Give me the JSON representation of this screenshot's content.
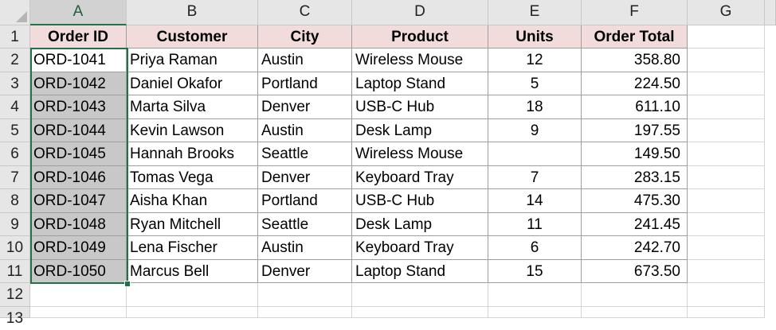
{
  "sheet": {
    "columns": [
      "A",
      "B",
      "C",
      "D",
      "E",
      "F",
      "G"
    ],
    "rows": [
      "1",
      "2",
      "3",
      "4",
      "5",
      "6",
      "7",
      "8",
      "9",
      "10",
      "11",
      "12",
      "13"
    ],
    "selected_column": "A",
    "active_cell": "A2"
  },
  "table": {
    "headers": [
      "Order ID",
      "Customer",
      "City",
      "Product",
      "Units",
      "Order Total"
    ],
    "rows": [
      [
        "ORD-1041",
        "Priya Raman",
        "Austin",
        "Wireless Mouse",
        "12",
        "358.80"
      ],
      [
        "ORD-1042",
        "Daniel Okafor",
        "Portland",
        "Laptop Stand",
        "5",
        "224.50"
      ],
      [
        "ORD-1043",
        "Marta Silva",
        "Denver",
        "USB-C Hub",
        "18",
        "611.10"
      ],
      [
        "ORD-1044",
        "Kevin Lawson",
        "Austin",
        "Desk Lamp",
        "9",
        "197.55"
      ],
      [
        "ORD-1045",
        "Hannah Brooks",
        "Seattle",
        "Wireless Mouse",
        "",
        "149.50"
      ],
      [
        "ORD-1046",
        "Tomas Vega",
        "Denver",
        "Keyboard Tray",
        "7",
        "283.15"
      ],
      [
        "ORD-1047",
        "Aisha Khan",
        "Portland",
        "USB-C Hub",
        "14",
        "475.30"
      ],
      [
        "ORD-1048",
        "Ryan Mitchell",
        "Seattle",
        "Desk Lamp",
        "11",
        "241.45"
      ],
      [
        "ORD-1049",
        "Lena Fischer",
        "Austin",
        "Keyboard Tray",
        "6",
        "242.70"
      ],
      [
        "ORD-1050",
        "Marcus Bell",
        "Denver",
        "Laptop Stand",
        "15",
        "673.50"
      ]
    ]
  },
  "colors": {
    "header_fill": "#f2dcdb",
    "selection_border": "#217346",
    "selected_fill": "#c8c8c8",
    "grid_header_fill": "#e6e6e6"
  }
}
